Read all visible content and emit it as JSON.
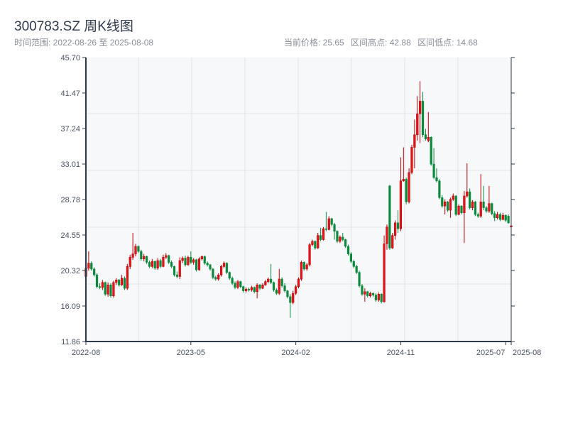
{
  "header": {
    "title": "300783.SZ 周K线图",
    "range_label": "时间范围: 2022-08-26 至 2025-08-08",
    "current_price": "当前价格: 25.65",
    "range_high": "区间高点: 42.88",
    "range_low": "区间低点: 14.68"
  },
  "colors": {
    "up": "#e8141c",
    "up_border": "#c00000",
    "down": "#0b8a3c",
    "background": "#f7f8fa",
    "axis": "#2d3a4a",
    "grid": "#e3e5ea"
  },
  "chart_data": {
    "type": "candlestick",
    "interval": "weekly",
    "start_date": "2022-08-26",
    "end_date": "2025-08-08",
    "up_color_meaning": "red = up, green = down",
    "ylim": [
      11.86,
      45.7
    ],
    "yticks": [
      "11.86",
      "16.09",
      "20.32",
      "24.55",
      "28.78",
      "33.01",
      "37.24",
      "41.47",
      "45.70"
    ],
    "xticks": [
      {
        "label": "2022-08",
        "date": "2022-08-26"
      },
      {
        "label": "2023-05",
        "date": "2023-05-19"
      },
      {
        "label": "2024-02",
        "date": "2024-02-09"
      },
      {
        "label": "2024-11",
        "date": "2024-11-01"
      },
      {
        "label": "2025-07",
        "date": "2025-07-25"
      },
      {
        "label": "2025-08",
        "date": "2025-08-08"
      }
    ],
    "ohlc": [
      [
        19.6,
        21.0,
        19.3,
        20.6
      ],
      [
        20.6,
        22.6,
        20.3,
        21.2
      ],
      [
        21.2,
        21.4,
        20.3,
        20.5
      ],
      [
        20.5,
        20.7,
        19.6,
        19.8
      ],
      [
        19.8,
        20.0,
        18.2,
        18.4
      ],
      [
        18.4,
        18.8,
        18.1,
        18.3
      ],
      [
        18.3,
        19.2,
        18.0,
        18.9
      ],
      [
        18.9,
        19.0,
        17.3,
        17.5
      ],
      [
        17.5,
        18.9,
        17.2,
        18.6
      ],
      [
        18.6,
        18.8,
        17.1,
        17.3
      ],
      [
        17.3,
        19.1,
        17.1,
        18.9
      ],
      [
        18.9,
        19.4,
        18.6,
        19.2
      ],
      [
        19.2,
        19.3,
        18.4,
        18.6
      ],
      [
        18.6,
        19.8,
        18.5,
        19.4
      ],
      [
        19.4,
        19.6,
        18.0,
        18.2
      ],
      [
        18.2,
        21.1,
        18.0,
        20.8
      ],
      [
        20.8,
        22.2,
        20.5,
        21.9
      ],
      [
        21.9,
        24.8,
        21.6,
        22.3
      ],
      [
        22.3,
        23.5,
        22.0,
        23.2
      ],
      [
        23.2,
        23.3,
        22.4,
        22.6
      ],
      [
        22.6,
        22.8,
        21.5,
        21.7
      ],
      [
        21.7,
        22.3,
        21.4,
        22.0
      ],
      [
        22.0,
        22.1,
        21.1,
        21.3
      ],
      [
        21.3,
        21.5,
        20.6,
        20.8
      ],
      [
        20.8,
        21.7,
        20.6,
        21.4
      ],
      [
        21.4,
        21.5,
        20.4,
        20.6
      ],
      [
        20.6,
        21.8,
        20.4,
        21.5
      ],
      [
        21.5,
        21.7,
        20.6,
        20.8
      ],
      [
        20.8,
        22.2,
        20.7,
        21.9
      ],
      [
        21.9,
        22.4,
        21.7,
        22.1
      ],
      [
        22.1,
        22.2,
        21.1,
        21.3
      ],
      [
        21.3,
        21.5,
        20.6,
        20.8
      ],
      [
        20.8,
        20.9,
        19.6,
        19.8
      ],
      [
        19.8,
        20.2,
        19.4,
        19.6
      ],
      [
        19.6,
        21.9,
        19.3,
        21.5
      ],
      [
        21.5,
        22.0,
        21.2,
        21.8
      ],
      [
        21.8,
        22.1,
        20.8,
        21.0
      ],
      [
        21.0,
        22.1,
        20.9,
        21.9
      ],
      [
        21.9,
        22.6,
        21.1,
        21.3
      ],
      [
        21.3,
        21.8,
        21.0,
        21.6
      ],
      [
        21.6,
        21.7,
        20.2,
        20.4
      ],
      [
        20.4,
        21.9,
        20.3,
        21.7
      ],
      [
        21.7,
        22.1,
        21.5,
        22.0
      ],
      [
        22.0,
        22.1,
        21.0,
        21.2
      ],
      [
        21.2,
        21.4,
        20.8,
        21.0
      ],
      [
        21.0,
        21.1,
        20.3,
        20.5
      ],
      [
        20.5,
        20.6,
        19.3,
        19.5
      ],
      [
        19.5,
        19.7,
        19.1,
        19.3
      ],
      [
        19.3,
        20.0,
        19.1,
        19.8
      ],
      [
        19.8,
        21.0,
        19.6,
        20.8
      ],
      [
        20.8,
        21.4,
        20.6,
        21.2
      ],
      [
        21.2,
        21.3,
        19.9,
        20.1
      ],
      [
        20.1,
        20.2,
        19.2,
        19.4
      ],
      [
        19.4,
        19.6,
        18.6,
        18.8
      ],
      [
        18.8,
        19.0,
        18.1,
        18.3
      ],
      [
        18.3,
        19.2,
        18.1,
        19.0
      ],
      [
        19.0,
        19.1,
        18.2,
        18.4
      ],
      [
        18.4,
        18.5,
        17.7,
        17.9
      ],
      [
        17.9,
        18.3,
        17.7,
        18.1
      ],
      [
        18.1,
        18.3,
        17.8,
        18.0
      ],
      [
        18.0,
        18.5,
        17.8,
        18.3
      ],
      [
        18.3,
        18.4,
        17.6,
        17.8
      ],
      [
        17.8,
        18.8,
        17.0,
        18.6
      ],
      [
        18.6,
        18.7,
        18.0,
        18.2
      ],
      [
        18.2,
        18.8,
        18.1,
        18.6
      ],
      [
        18.6,
        19.2,
        18.5,
        19.0
      ],
      [
        19.0,
        19.5,
        18.8,
        19.3
      ],
      [
        19.3,
        21.1,
        18.7,
        18.9
      ],
      [
        18.9,
        19.0,
        17.8,
        18.0
      ],
      [
        18.0,
        18.2,
        17.4,
        17.6
      ],
      [
        17.6,
        20.5,
        17.4,
        19.3
      ],
      [
        19.3,
        19.5,
        18.3,
        18.5
      ],
      [
        18.5,
        18.8,
        17.7,
        17.9
      ],
      [
        17.9,
        18.0,
        17.0,
        17.2
      ],
      [
        17.2,
        17.5,
        14.68,
        16.5
      ],
      [
        16.5,
        17.9,
        16.3,
        17.6
      ],
      [
        17.6,
        18.6,
        17.4,
        18.4
      ],
      [
        18.4,
        19.5,
        18.2,
        19.3
      ],
      [
        19.3,
        21.5,
        19.1,
        21.3
      ],
      [
        21.3,
        21.4,
        20.3,
        20.5
      ],
      [
        20.5,
        21.2,
        20.3,
        21.0
      ],
      [
        21.0,
        23.6,
        20.8,
        23.4
      ],
      [
        23.4,
        24.0,
        23.2,
        23.8
      ],
      [
        23.8,
        23.9,
        22.8,
        23.0
      ],
      [
        23.0,
        24.8,
        22.9,
        24.5
      ],
      [
        24.5,
        25.4,
        23.8,
        24.0
      ],
      [
        24.0,
        25.5,
        23.9,
        25.3
      ],
      [
        25.3,
        27.3,
        25.0,
        25.2
      ],
      [
        25.2,
        26.8,
        25.1,
        26.5
      ],
      [
        26.5,
        26.6,
        25.6,
        25.8
      ],
      [
        25.8,
        26.0,
        24.0,
        25.0
      ],
      [
        25.0,
        25.1,
        23.6,
        23.8
      ],
      [
        23.8,
        24.5,
        23.6,
        24.3
      ],
      [
        24.3,
        24.8,
        23.8,
        24.0
      ],
      [
        24.0,
        24.1,
        23.0,
        23.2
      ],
      [
        23.2,
        23.4,
        22.1,
        22.3
      ],
      [
        22.3,
        22.5,
        21.2,
        21.4
      ],
      [
        21.4,
        21.6,
        20.6,
        20.8
      ],
      [
        20.8,
        21.0,
        19.9,
        20.1
      ],
      [
        20.1,
        20.3,
        18.3,
        18.5
      ],
      [
        18.5,
        18.7,
        17.3,
        17.5
      ],
      [
        17.5,
        18.2,
        16.6,
        17.8
      ],
      [
        17.8,
        17.9,
        17.1,
        17.3
      ],
      [
        17.3,
        17.8,
        17.1,
        17.6
      ],
      [
        17.6,
        17.7,
        17.2,
        17.4
      ],
      [
        17.4,
        17.6,
        16.6,
        16.8
      ],
      [
        16.8,
        17.7,
        16.6,
        17.5
      ],
      [
        17.5,
        17.6,
        16.4,
        16.6
      ],
      [
        16.6,
        24.5,
        16.5,
        23.5
      ],
      [
        23.5,
        25.8,
        22.8,
        25.5
      ],
      [
        30.4,
        30.5,
        22.8,
        23.0
      ],
      [
        23.0,
        24.8,
        22.9,
        24.5
      ],
      [
        24.5,
        26.3,
        24.0,
        26.0
      ],
      [
        26.0,
        27.5,
        24.8,
        25.3
      ],
      [
        25.3,
        33.8,
        25.0,
        31.0
      ],
      [
        31.0,
        35.0,
        30.9,
        31.2
      ],
      [
        31.2,
        31.4,
        28.2,
        28.5
      ],
      [
        28.5,
        32.5,
        28.3,
        32.0
      ],
      [
        32.0,
        35.3,
        31.8,
        35.0
      ],
      [
        35.0,
        38.3,
        32.5,
        36.5
      ],
      [
        36.5,
        41.1,
        35.8,
        39.0
      ],
      [
        39.0,
        42.88,
        35.5,
        40.5
      ],
      [
        40.5,
        41.6,
        36.2,
        36.5
      ],
      [
        36.5,
        37.2,
        35.8,
        36.0
      ],
      [
        35.8,
        39.2,
        35.6,
        36.2
      ],
      [
        36.2,
        36.3,
        32.8,
        33.0
      ],
      [
        33.0,
        34.9,
        31.2,
        31.4
      ],
      [
        31.4,
        32.5,
        30.8,
        31.0
      ],
      [
        31.0,
        31.2,
        28.8,
        29.0
      ],
      [
        29.0,
        29.3,
        27.8,
        28.0
      ],
      [
        28.0,
        28.8,
        27.0,
        28.5
      ],
      [
        28.5,
        28.6,
        27.3,
        27.5
      ],
      [
        27.5,
        29.0,
        26.6,
        28.8
      ],
      [
        28.8,
        29.5,
        28.6,
        29.2
      ],
      [
        29.2,
        29.3,
        26.8,
        27.0
      ],
      [
        27.0,
        28.2,
        26.9,
        28.0
      ],
      [
        28.0,
        28.1,
        27.0,
        27.2
      ],
      [
        27.2,
        29.8,
        23.6,
        29.2
      ],
      [
        29.2,
        33.1,
        29.0,
        29.7
      ],
      [
        29.7,
        30.1,
        27.6,
        27.8
      ],
      [
        27.8,
        28.7,
        27.5,
        28.5
      ],
      [
        28.5,
        28.6,
        26.8,
        27.0
      ],
      [
        27.0,
        27.2,
        26.6,
        26.8
      ],
      [
        26.8,
        31.8,
        26.6,
        28.5
      ],
      [
        28.5,
        30.4,
        27.5,
        27.8
      ],
      [
        27.8,
        28.0,
        27.2,
        27.4
      ],
      [
        27.4,
        30.4,
        27.2,
        28.3
      ],
      [
        28.3,
        28.4,
        26.9,
        27.1
      ],
      [
        27.1,
        27.4,
        26.2,
        26.6
      ],
      [
        26.6,
        27.3,
        26.4,
        27.0
      ],
      [
        27.0,
        27.2,
        26.2,
        26.4
      ],
      [
        26.4,
        27.2,
        26.3,
        26.9
      ],
      [
        26.9,
        27.0,
        26.1,
        26.3
      ],
      [
        26.8,
        27.0,
        25.9,
        26.0
      ],
      [
        25.5,
        26.1,
        25.3,
        25.65
      ]
    ]
  }
}
